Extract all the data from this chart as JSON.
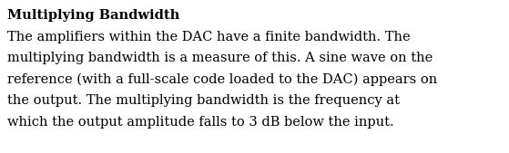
{
  "background_color": "#ffffff",
  "title": "Multiplying Bandwidth",
  "body_lines": [
    "The amplifiers within the DAC have a finite bandwidth. The",
    "multiplying bandwidth is a measure of this. A sine wave on the",
    "reference (with a full-scale code loaded to the DAC) appears on",
    "the output. The multiplying bandwidth is the frequency at",
    "which the output amplitude falls to 3 dB below the input."
  ],
  "title_fontsize": 10.5,
  "body_fontsize": 10.5,
  "text_color": "#000000",
  "font_family": "DejaVu Serif",
  "fig_width": 5.59,
  "fig_height": 1.69,
  "dpi": 100
}
